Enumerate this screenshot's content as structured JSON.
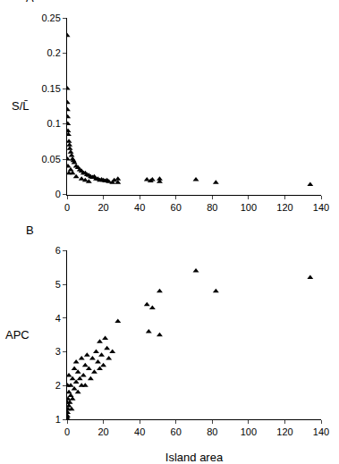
{
  "chart_data": [
    {
      "type": "scatter",
      "label": "A",
      "ylabel": "S/L̄",
      "color": "#000000",
      "marker": "triangle-up",
      "grid": false,
      "xlim": [
        0,
        140
      ],
      "xticks": [
        0,
        20,
        40,
        60,
        80,
        100,
        120,
        140
      ],
      "ylim": [
        0,
        0.25
      ],
      "yticks": [
        0,
        0.05,
        0.1,
        0.15,
        0.2,
        0.25
      ],
      "x": [
        0.05,
        0.1,
        0.15,
        0.2,
        0.3,
        0.4,
        0.5,
        0.7,
        1,
        1.3,
        1.5,
        2,
        2.5,
        3,
        3.5,
        4,
        5,
        6,
        7,
        8,
        9,
        10,
        11,
        12,
        13,
        14,
        15,
        16,
        17,
        18,
        19,
        20,
        21,
        22,
        23,
        25,
        26,
        28,
        28,
        44,
        46,
        47,
        51,
        51,
        71,
        82,
        134,
        0.2,
        0.5,
        1,
        2,
        3,
        5,
        8,
        10,
        12
      ],
      "values": [
        0.225,
        0.15,
        0.13,
        0.12,
        0.11,
        0.1,
        0.09,
        0.085,
        0.075,
        0.07,
        0.065,
        0.06,
        0.055,
        0.05,
        0.048,
        0.045,
        0.04,
        0.038,
        0.035,
        0.033,
        0.03,
        0.03,
        0.028,
        0.027,
        0.025,
        0.024,
        0.025,
        0.022,
        0.022,
        0.02,
        0.021,
        0.02,
        0.019,
        0.02,
        0.018,
        0.017,
        0.02,
        0.022,
        0.017,
        0.021,
        0.019,
        0.021,
        0.018,
        0.022,
        0.021,
        0.017,
        0.014,
        0.05,
        0.04,
        0.03,
        0.035,
        0.03,
        0.025,
        0.022,
        0.02,
        0.018
      ]
    },
    {
      "type": "scatter",
      "label": "B",
      "ylabel": "APC",
      "xlabel": "Island area",
      "color": "#000000",
      "marker": "triangle-up",
      "grid": false,
      "xlim": [
        0,
        140
      ],
      "xticks": [
        0,
        20,
        40,
        60,
        80,
        100,
        120,
        140
      ],
      "ylim": [
        1,
        6
      ],
      "yticks": [
        1,
        2,
        3,
        4,
        5,
        6
      ],
      "x": [
        0.1,
        0.2,
        0.3,
        0.5,
        0.5,
        1,
        1,
        1.5,
        2,
        2,
        2.5,
        3,
        3,
        4,
        4,
        5,
        5,
        6,
        6,
        7,
        8,
        8,
        9,
        10,
        10,
        11,
        12,
        13,
        14,
        15,
        16,
        17,
        18,
        18,
        19,
        20,
        21,
        22,
        23,
        25,
        28,
        44,
        45,
        47,
        51,
        51,
        71,
        82,
        134,
        0.1,
        0.3,
        1,
        0
      ],
      "values": [
        1.0,
        1.1,
        1.2,
        1.3,
        1.6,
        1.4,
        1.8,
        1.5,
        1.7,
        2.0,
        1.3,
        2.2,
        1.6,
        1.9,
        2.5,
        2.1,
        2.7,
        1.8,
        2.4,
        2.2,
        2.8,
        2.0,
        2.3,
        2.6,
        2.0,
        2.9,
        2.5,
        2.2,
        2.8,
        2.4,
        3.0,
        2.7,
        3.3,
        2.5,
        2.9,
        2.6,
        3.4,
        3.1,
        2.8,
        3.0,
        3.9,
        4.4,
        3.6,
        4.3,
        4.8,
        3.5,
        5.4,
        4.8,
        5.2,
        1.5,
        2.0,
        2.3,
        1.05
      ]
    }
  ]
}
